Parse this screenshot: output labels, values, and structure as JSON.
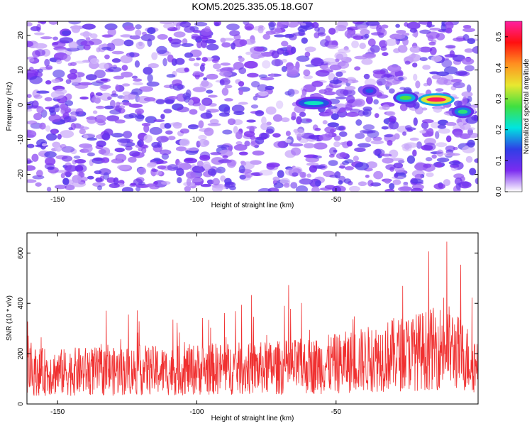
{
  "title": "KOM5.2025.335.05.18.G07",
  "chart_data": [
    {
      "type": "heatmap",
      "xlabel": "Height of straight line (km)",
      "ylabel": "Frequency (Hz)",
      "xlim": [
        -161,
        1
      ],
      "ylim": [
        -25,
        24
      ],
      "x_ticks": [
        -150,
        -100,
        -50
      ],
      "y_ticks": [
        -20,
        -10,
        0,
        10,
        20
      ],
      "colorbar": {
        "label": "Normalized spectral amplitude",
        "range": [
          0.0,
          0.55
        ],
        "ticks": [
          "0.0",
          "0.1",
          "0.2",
          "0.3",
          "0.4",
          "0.5"
        ],
        "colors": [
          "#ffffff",
          "#7b2cf0",
          "#2f3fe6",
          "#00e5e0",
          "#40e040",
          "#e8e830",
          "#ff9020",
          "#ff1010",
          "#ff20a0"
        ]
      },
      "features": [
        {
          "x": [
            -63,
            -53
          ],
          "y": 0.5,
          "peak": 0.22
        },
        {
          "x": [
            -40,
            -36
          ],
          "y": 4.0,
          "peak": 0.15
        },
        {
          "x": [
            -28,
            -22
          ],
          "y": 2.0,
          "peak": 0.28
        },
        {
          "x": [
            -19,
            -9
          ],
          "y": 1.5,
          "peak": 0.52
        },
        {
          "x": [
            -7,
            -2
          ],
          "y": -2.0,
          "peak": 0.25
        }
      ]
    },
    {
      "type": "line",
      "xlabel": "Height of straight line (km)",
      "ylabel": "SNR (10 * v/v)",
      "xlim": [
        -161,
        1
      ],
      "ylim": [
        0,
        680
      ],
      "x_ticks": [
        -150,
        -100,
        -50
      ],
      "y_ticks": [
        0,
        200,
        400,
        600
      ],
      "series_color": "#f03030",
      "series": [
        {
          "x": [
            -160,
            -150,
            -140,
            -130,
            -120,
            -110,
            -100,
            -90,
            -80,
            -70,
            -60,
            -50,
            -40,
            -30,
            -20,
            -10,
            0
          ],
          "values": [
            130,
            125,
            130,
            128,
            135,
            130,
            138,
            140,
            140,
            145,
            150,
            160,
            175,
            195,
            210,
            230,
            160
          ]
        }
      ]
    }
  ]
}
